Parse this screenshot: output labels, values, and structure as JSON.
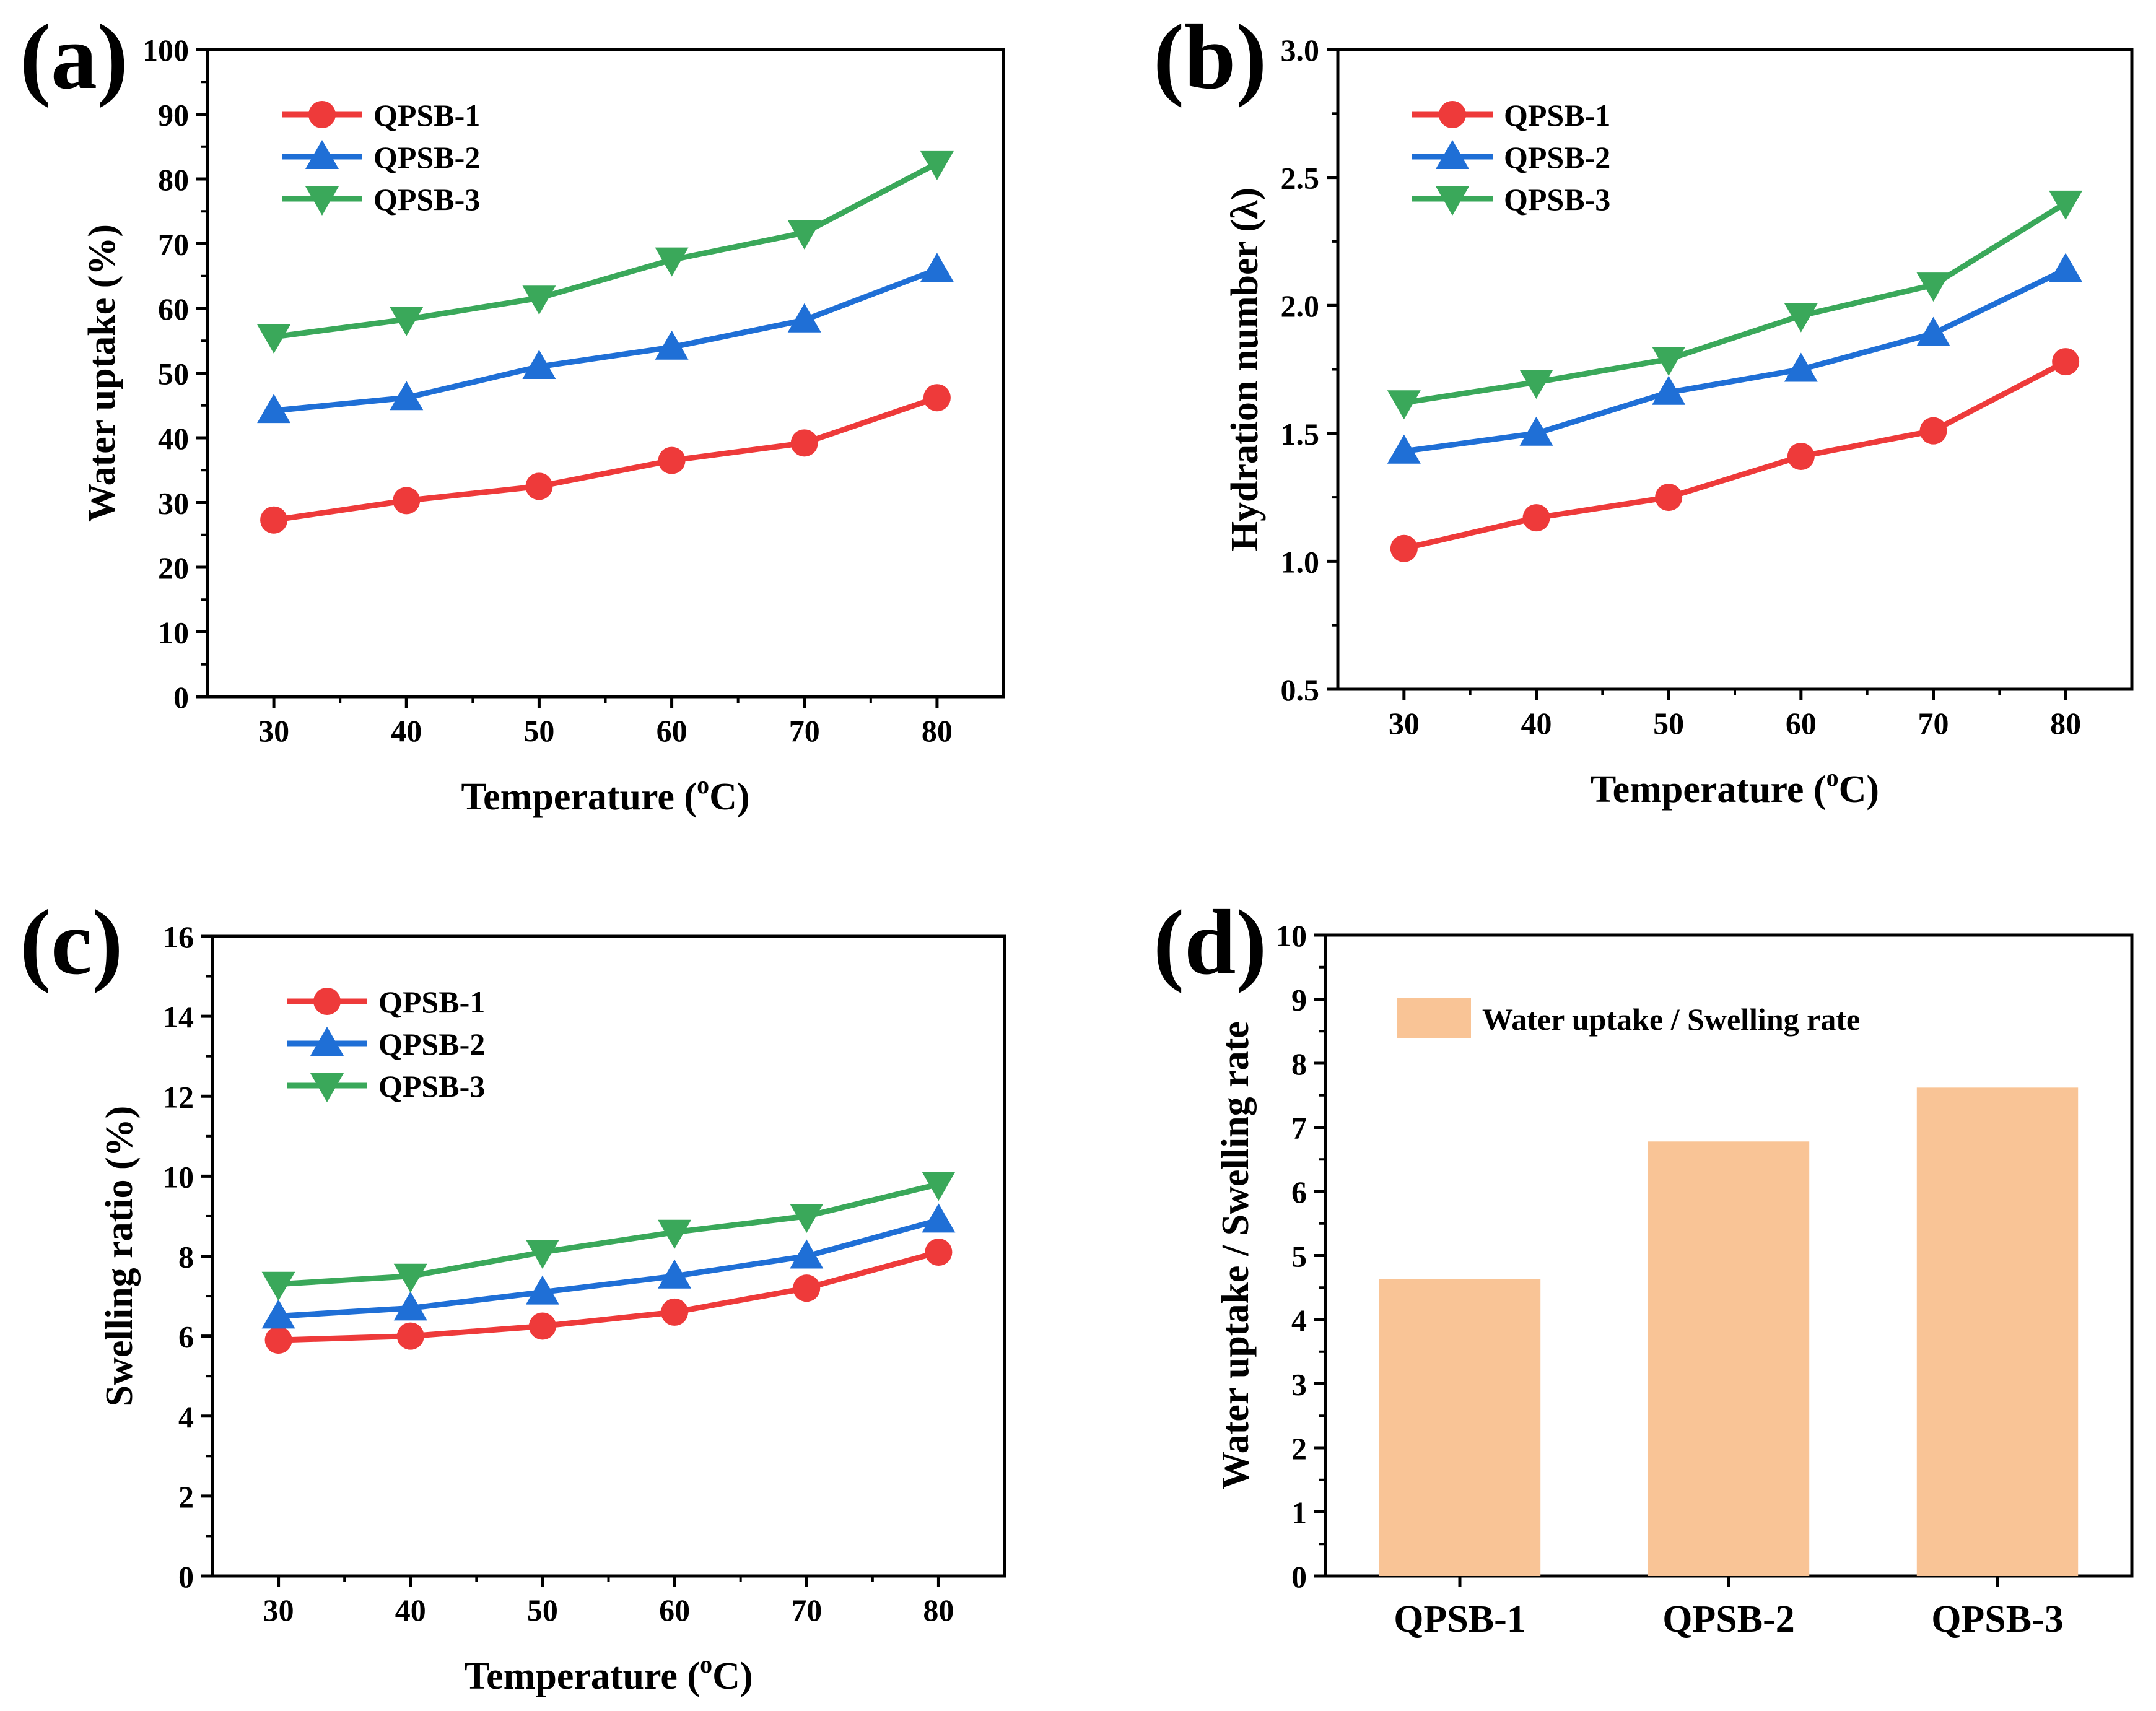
{
  "panel_labels": [
    "(a)",
    "(b)",
    "(c)",
    "(d)"
  ],
  "colors": {
    "QPSB-1": "#ee3a3a",
    "QPSB-2": "#1f6fd6",
    "QPSB-3": "#3aa85a",
    "bar": "#f9c496"
  },
  "chart_data": [
    {
      "id": "a",
      "type": "line",
      "title": "",
      "xlabel": "Temperature (oC)",
      "ylabel": "Water uptake (%)",
      "x": [
        30,
        40,
        50,
        60,
        70,
        80
      ],
      "xlim": [
        25,
        85
      ],
      "ylim": [
        0,
        100
      ],
      "xticks": [
        30,
        40,
        50,
        60,
        70,
        80
      ],
      "yticks": [
        0,
        10,
        20,
        30,
        40,
        50,
        60,
        70,
        80,
        90,
        100
      ],
      "ytick_labels": [
        "0",
        "10",
        "20",
        "30",
        "40",
        "50",
        "60",
        "70",
        "80",
        "90",
        "100"
      ],
      "legend_location": "top-left",
      "series": [
        {
          "name": "QPSB-1",
          "marker": "circle",
          "values": [
            27.3,
            30.3,
            32.5,
            36.5,
            39.2,
            46.2
          ]
        },
        {
          "name": "QPSB-2",
          "marker": "triangle-up",
          "values": [
            44.2,
            46.2,
            51.0,
            54.0,
            58.2,
            66.0
          ]
        },
        {
          "name": "QPSB-3",
          "marker": "triangle-down",
          "values": [
            55.6,
            58.3,
            61.6,
            67.5,
            71.7,
            82.4
          ]
        }
      ]
    },
    {
      "id": "b",
      "type": "line",
      "title": "",
      "xlabel": "Temperature (oC)",
      "ylabel": "Hydration number (λ)",
      "x": [
        30,
        40,
        50,
        60,
        70,
        80
      ],
      "xlim": [
        25,
        85
      ],
      "ylim": [
        0.5,
        3.0
      ],
      "xticks": [
        30,
        40,
        50,
        60,
        70,
        80
      ],
      "yticks": [
        0.5,
        1.0,
        1.5,
        2.0,
        2.5,
        3.0
      ],
      "ytick_labels": [
        "0.5",
        "1.0",
        "1.5",
        "2.0",
        "2.5",
        "3.0"
      ],
      "legend_location": "top-left",
      "series": [
        {
          "name": "QPSB-1",
          "marker": "circle",
          "values": [
            1.05,
            1.17,
            1.25,
            1.41,
            1.51,
            1.78
          ]
        },
        {
          "name": "QPSB-2",
          "marker": "triangle-up",
          "values": [
            1.43,
            1.5,
            1.66,
            1.75,
            1.89,
            2.14
          ]
        },
        {
          "name": "QPSB-3",
          "marker": "triangle-down",
          "values": [
            1.62,
            1.7,
            1.79,
            1.96,
            2.08,
            2.4
          ]
        }
      ]
    },
    {
      "id": "c",
      "type": "line",
      "title": "",
      "xlabel": "Temperature (oC)",
      "ylabel": "Swelling ratio (%)",
      "x": [
        30,
        40,
        50,
        60,
        70,
        80
      ],
      "xlim": [
        25,
        85
      ],
      "ylim": [
        0,
        16
      ],
      "xticks": [
        30,
        40,
        50,
        60,
        70,
        80
      ],
      "yticks": [
        0,
        2,
        4,
        6,
        8,
        10,
        12,
        14,
        16
      ],
      "ytick_labels": [
        "0",
        "2",
        "4",
        "6",
        "8",
        "10",
        "12",
        "14",
        "16"
      ],
      "legend_location": "top-left",
      "series": [
        {
          "name": "QPSB-1",
          "marker": "circle",
          "values": [
            5.9,
            6.0,
            6.25,
            6.6,
            7.2,
            8.1
          ]
        },
        {
          "name": "QPSB-2",
          "marker": "triangle-up",
          "values": [
            6.5,
            6.7,
            7.1,
            7.5,
            8.0,
            8.9
          ]
        },
        {
          "name": "QPSB-3",
          "marker": "triangle-down",
          "values": [
            7.3,
            7.5,
            8.1,
            8.6,
            9.0,
            9.8
          ]
        }
      ]
    },
    {
      "id": "d",
      "type": "bar",
      "title": "",
      "xlabel": "",
      "ylabel": "Water uptake / Swelling rate",
      "categories": [
        "QPSB-1",
        "QPSB-2",
        "QPSB-3"
      ],
      "ylim": [
        0,
        10
      ],
      "yticks": [
        0,
        1,
        2,
        3,
        4,
        5,
        6,
        7,
        8,
        9,
        10
      ],
      "ytick_labels": [
        "0",
        "1",
        "2",
        "3",
        "4",
        "5",
        "6",
        "7",
        "8",
        "9",
        "10"
      ],
      "legend_location": "top-left",
      "series": [
        {
          "name": "Water uptake / Swelling rate",
          "values": [
            4.63,
            6.78,
            7.62
          ]
        }
      ]
    }
  ]
}
